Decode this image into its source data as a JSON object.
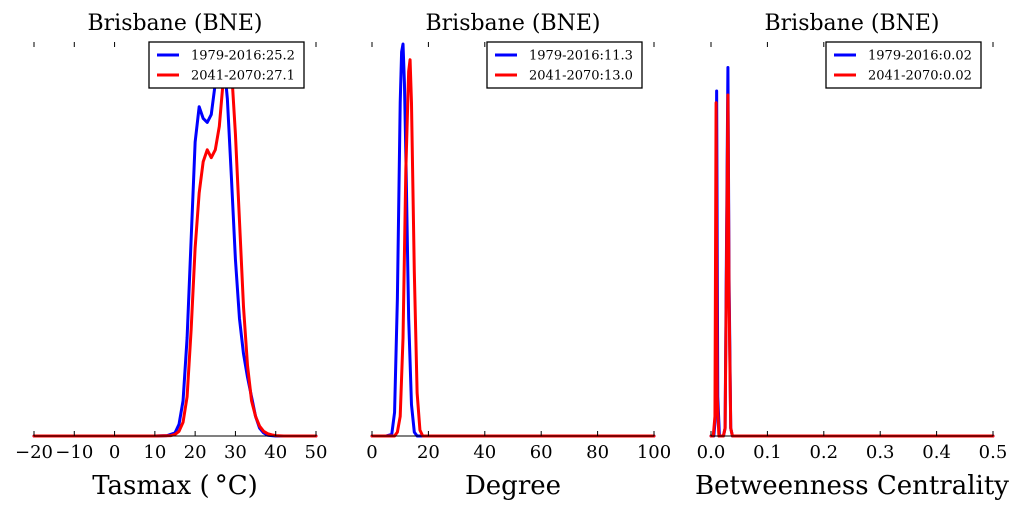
{
  "chart_data": [
    {
      "type": "line",
      "title": "Brisbane (BNE)",
      "xlabel": "Tasmax ($^\\circ$C)",
      "xlabel_display": "Tasmax ( °C)",
      "ylabel": "",
      "xlim": [
        -20,
        50
      ],
      "xticks": [
        -20,
        -10,
        0,
        10,
        20,
        30,
        40,
        50
      ],
      "xtick_labels": [
        "−20",
        "−10",
        "0",
        "10",
        "20",
        "30",
        "40",
        "50"
      ],
      "legend_loc": "upper right",
      "series": [
        {
          "name": "1979-2016:25.2",
          "color": "#0000ff",
          "x": [
            -20,
            10,
            13,
            15,
            16,
            17,
            18,
            19,
            20,
            21,
            22,
            23,
            24,
            25,
            26,
            27,
            28,
            29,
            30,
            31,
            32,
            33,
            34,
            35,
            36,
            37,
            38,
            40,
            50
          ],
          "y": [
            0,
            0,
            0.001,
            0.008,
            0.03,
            0.09,
            0.25,
            0.5,
            0.75,
            0.84,
            0.81,
            0.8,
            0.82,
            0.9,
            1.0,
            0.97,
            0.86,
            0.66,
            0.45,
            0.3,
            0.21,
            0.15,
            0.1,
            0.05,
            0.02,
            0.008,
            0.002,
            0,
            0
          ]
        },
        {
          "name": "2041-2070:27.1",
          "color": "#ff0000",
          "x": [
            -20,
            10,
            14,
            15,
            16,
            17,
            18,
            19,
            20,
            21,
            22,
            23,
            24,
            25,
            26,
            27,
            28,
            29,
            30,
            31,
            32,
            33,
            34,
            35,
            36,
            37,
            38,
            39,
            40,
            42,
            50
          ],
          "y": [
            0,
            0,
            0.001,
            0.004,
            0.012,
            0.035,
            0.1,
            0.27,
            0.48,
            0.62,
            0.7,
            0.73,
            0.71,
            0.73,
            0.79,
            0.91,
            1.0,
            0.94,
            0.77,
            0.55,
            0.33,
            0.18,
            0.09,
            0.05,
            0.025,
            0.012,
            0.006,
            0.003,
            0.001,
            0,
            0
          ]
        }
      ]
    },
    {
      "type": "line",
      "title": "Brisbane (BNE)",
      "xlabel": "Degree",
      "xlabel_display": "Degree",
      "ylabel": "",
      "xlim": [
        0,
        100
      ],
      "xticks": [
        0,
        20,
        40,
        60,
        80,
        100
      ],
      "xtick_labels": [
        "0",
        "20",
        "40",
        "60",
        "80",
        "100"
      ],
      "legend_loc": "upper right",
      "series": [
        {
          "name": "1979-2016:11.3",
          "color": "#0000ff",
          "x": [
            0,
            5,
            7,
            8,
            9,
            10,
            10.5,
            11,
            11.5,
            12,
            13,
            14,
            15,
            16,
            100
          ],
          "y": [
            0,
            0,
            0.004,
            0.06,
            0.35,
            0.85,
            0.98,
            1.0,
            0.9,
            0.72,
            0.3,
            0.08,
            0.01,
            0,
            0
          ]
        },
        {
          "name": "2041-2070:13.0",
          "color": "#ff0000",
          "x": [
            0,
            8,
            9,
            10,
            11,
            12,
            13,
            13.5,
            14,
            15,
            16,
            17,
            18,
            100
          ],
          "y": [
            0,
            0,
            0.01,
            0.05,
            0.25,
            0.68,
            0.93,
            0.96,
            0.85,
            0.42,
            0.11,
            0.015,
            0,
            0
          ]
        }
      ]
    },
    {
      "type": "line",
      "title": "Brisbane (BNE)",
      "xlabel": "Betweenness Centrality",
      "xlabel_display": "Betweenness Centrality",
      "ylabel": "",
      "xlim": [
        0.0,
        0.5
      ],
      "xticks": [
        0.0,
        0.1,
        0.2,
        0.3,
        0.4,
        0.5
      ],
      "xtick_labels": [
        "0.0",
        "0.1",
        "0.2",
        "0.3",
        "0.4",
        "0.5"
      ],
      "legend_loc": "upper right",
      "series": [
        {
          "name": "1979-2016:0.02",
          "color": "#0000ff",
          "x": [
            0.0,
            0.005,
            0.008,
            0.01,
            0.012,
            0.015,
            0.018,
            0.02,
            0.022,
            0.025,
            0.027,
            0.03,
            0.032,
            0.035,
            0.038,
            0.5
          ],
          "y": [
            0,
            0,
            0.05,
            0.88,
            0.1,
            0,
            0,
            0,
            0,
            0.02,
            0.4,
            0.94,
            0.4,
            0.02,
            0,
            0
          ]
        },
        {
          "name": "2041-2070:0.02",
          "color": "#ff0000",
          "x": [
            0.0,
            0.004,
            0.007,
            0.009,
            0.011,
            0.014,
            0.018,
            0.02,
            0.022,
            0.025,
            0.027,
            0.03,
            0.032,
            0.035,
            0.038,
            0.5
          ],
          "y": [
            0,
            0,
            0.05,
            0.85,
            0.1,
            0,
            0,
            0,
            0,
            0.02,
            0.35,
            0.87,
            0.35,
            0.02,
            0,
            0
          ]
        }
      ]
    }
  ]
}
